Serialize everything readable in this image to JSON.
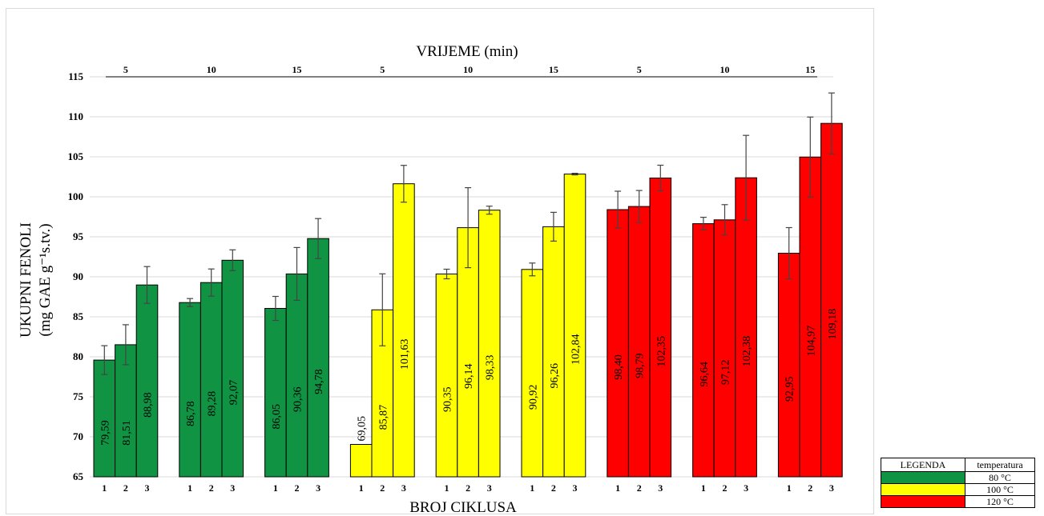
{
  "chart_data": {
    "type": "bar",
    "xlabel": "BROJ CIKLUSA",
    "ylabel_line1": "UKUPNI FENOLI",
    "ylabel_line2": "(mg GAE g⁻¹s.tv.)",
    "secondary_xlabel": "VRIJEME (min)",
    "ylim": [
      65,
      115
    ],
    "yticks": [
      65,
      70,
      75,
      80,
      85,
      90,
      95,
      100,
      105,
      110,
      115
    ],
    "grid": true,
    "legend_placement": "bottom-right",
    "groups": [
      {
        "time": "5",
        "temperature": "80 °C",
        "cycles": [
          "1",
          "2",
          "3"
        ],
        "values": [
          79.59,
          81.51,
          88.98
        ],
        "labels": [
          "79,59",
          "81,51",
          "88,98"
        ],
        "errors": [
          1.8,
          2.5,
          2.3
        ]
      },
      {
        "time": "10",
        "temperature": "80 °C",
        "cycles": [
          "1",
          "2",
          "3"
        ],
        "values": [
          86.78,
          89.28,
          92.07
        ],
        "labels": [
          "86,78",
          "89,28",
          "92,07"
        ],
        "errors": [
          0.5,
          1.7,
          1.3
        ]
      },
      {
        "time": "15",
        "temperature": "80 °C",
        "cycles": [
          "1",
          "2",
          "3"
        ],
        "values": [
          86.05,
          90.36,
          94.78
        ],
        "labels": [
          "86,05",
          "90,36",
          "94,78"
        ],
        "errors": [
          1.5,
          3.3,
          2.5
        ]
      },
      {
        "time": "5",
        "temperature": "100 °C",
        "cycles": [
          "1",
          "2",
          "3"
        ],
        "values": [
          69.05,
          85.87,
          101.63
        ],
        "labels": [
          "69,05",
          "85,87",
          "101,63"
        ],
        "errors": [
          0,
          4.5,
          2.3
        ]
      },
      {
        "time": "10",
        "temperature": "100 °C",
        "cycles": [
          "1",
          "2",
          "3"
        ],
        "values": [
          90.35,
          96.14,
          98.33
        ],
        "labels": [
          "90,35",
          "96,14",
          "98,33"
        ],
        "errors": [
          0.6,
          5.0,
          0.5
        ]
      },
      {
        "time": "15",
        "temperature": "100 °C",
        "cycles": [
          "1",
          "2",
          "3"
        ],
        "values": [
          90.92,
          96.26,
          102.84
        ],
        "labels": [
          "90,92",
          "96,26",
          "102,84"
        ],
        "errors": [
          0.8,
          1.8,
          0.1
        ]
      },
      {
        "time": "5",
        "temperature": "120 °C",
        "cycles": [
          "1",
          "2",
          "3"
        ],
        "values": [
          98.4,
          98.79,
          102.35
        ],
        "labels": [
          "98,40",
          "98,79",
          "102,35"
        ],
        "errors": [
          2.3,
          2.0,
          1.6
        ]
      },
      {
        "time": "10",
        "temperature": "120 °C",
        "cycles": [
          "1",
          "2",
          "3"
        ],
        "values": [
          96.64,
          97.12,
          102.38
        ],
        "labels": [
          "96,64",
          "97,12",
          "102,38"
        ],
        "errors": [
          0.8,
          1.9,
          5.3
        ]
      },
      {
        "time": "15",
        "temperature": "120 °C",
        "cycles": [
          "1",
          "2",
          "3"
        ],
        "values": [
          92.95,
          104.97,
          109.18
        ],
        "labels": [
          "92,95",
          "104,97",
          "109,18"
        ],
        "errors": [
          3.2,
          5.0,
          3.8
        ]
      }
    ],
    "legend": {
      "header_left": "LEGENDA",
      "header_right": "temperatura",
      "entries": [
        {
          "label": "80 °C",
          "color": "#109444"
        },
        {
          "label": "100 °C",
          "color": "#ffff00"
        },
        {
          "label": "120 °C",
          "color": "#ff0000"
        }
      ]
    }
  }
}
